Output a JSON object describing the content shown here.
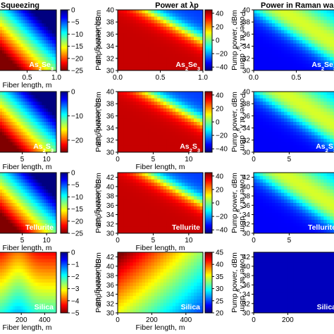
{
  "headers": [
    "Squeezing",
    "Power at λp",
    "Power in Raman wa"
  ],
  "chart_data": [
    {
      "type": "heatmap",
      "row": 0,
      "col": 0,
      "material": "As2Se3",
      "xlabel": "Fiber length, m",
      "xlim": [
        0,
        1
      ],
      "xticks": [
        "0.5",
        "1.0"
      ],
      "ylim": [
        0,
        1
      ],
      "yticks": [],
      "colorbar_label": "Squeezing, dB",
      "clim": [
        -25,
        0
      ],
      "cticks": [
        "0",
        "−5",
        "−10",
        "−15",
        "−20",
        "−25"
      ],
      "cmap": "jet_r",
      "pattern": "squeeze"
    },
    {
      "type": "heatmap",
      "row": 0,
      "col": 1,
      "material": "As2Se3",
      "xlabel": "",
      "xlim": [
        0,
        1
      ],
      "xticks": [
        "0.0",
        "0.5",
        "1.0"
      ],
      "ylabel": "Pump power, dBm",
      "ylim": [
        30,
        40
      ],
      "yticks": [
        "30",
        "32",
        "34",
        "36",
        "38",
        "40"
      ],
      "colorbar_label": "Power at λp, dBm",
      "clim": [
        -45,
        45
      ],
      "cticks": [
        "40",
        "20",
        "0",
        "−20",
        "−40"
      ],
      "cmap": "jet",
      "pattern": "pump"
    },
    {
      "type": "heatmap",
      "row": 0,
      "col": 2,
      "material": "As2Se3",
      "xlabel": "",
      "xlim": [
        0,
        1
      ],
      "xticks": [
        "0.0",
        "0.5"
      ],
      "ylabel": "Pump power, dBm",
      "ylim": [
        30,
        40
      ],
      "yticks": [
        "30",
        "32",
        "34",
        "36",
        "38",
        "40"
      ],
      "cmap": "jet",
      "pattern": "raman"
    },
    {
      "type": "heatmap",
      "row": 1,
      "col": 0,
      "material": "As2S3",
      "xlabel": "Fiber length, m",
      "xlim": [
        0,
        12
      ],
      "xticks": [
        "5",
        "10"
      ],
      "ylim": [
        0,
        1
      ],
      "yticks": [],
      "colorbar_label": "Squeezing, dB",
      "clim": [
        -25,
        0
      ],
      "cticks": [
        "0",
        "−10",
        "−20"
      ],
      "cmap": "jet_r",
      "pattern": "squeeze"
    },
    {
      "type": "heatmap",
      "row": 1,
      "col": 1,
      "material": "As2S3",
      "xlabel": "Fiber length, m",
      "xlim": [
        0,
        12
      ],
      "xticks": [
        "0",
        "5",
        "10"
      ],
      "ylabel": "Pump power, dBm",
      "ylim": [
        30,
        40
      ],
      "yticks": [
        "30",
        "32",
        "34",
        "36",
        "38",
        "40"
      ],
      "colorbar_label": "Power at λp, dBm",
      "clim": [
        -45,
        45
      ],
      "cticks": [
        "40",
        "20",
        "0",
        "−20",
        "−40"
      ],
      "cmap": "jet",
      "pattern": "pump"
    },
    {
      "type": "heatmap",
      "row": 1,
      "col": 2,
      "material": "As2S3",
      "xlabel": "",
      "xlim": [
        0,
        12
      ],
      "xticks": [
        "0",
        "5"
      ],
      "ylabel": "Pump power, dBm",
      "ylim": [
        30,
        40
      ],
      "yticks": [
        "30",
        "32",
        "34",
        "36",
        "38",
        "40"
      ],
      "cmap": "jet",
      "pattern": "raman"
    },
    {
      "type": "heatmap",
      "row": 2,
      "col": 0,
      "material": "Tellurite",
      "xlabel": "Fiber length, m",
      "xlim": [
        0,
        12
      ],
      "xticks": [
        "5",
        "10"
      ],
      "ylim": [
        0,
        1
      ],
      "yticks": [],
      "colorbar_label": "Squeezing, dB",
      "clim": [
        -25,
        0
      ],
      "cticks": [
        "0",
        "−5",
        "−10",
        "−15",
        "−20",
        "−25"
      ],
      "cmap": "jet_r",
      "pattern": "squeeze"
    },
    {
      "type": "heatmap",
      "row": 2,
      "col": 1,
      "material": "Tellurite",
      "xlabel": "Fiber length, m",
      "xlim": [
        0,
        12
      ],
      "xticks": [
        "0",
        "5",
        "10"
      ],
      "ylabel": "Pump power, dBm",
      "ylim": [
        30,
        43
      ],
      "yticks": [
        "30",
        "32",
        "34",
        "36",
        "38",
        "40",
        "42"
      ],
      "colorbar_label": "Power at λp, dBm",
      "clim": [
        -45,
        45
      ],
      "cticks": [
        "40",
        "20",
        "0",
        "−20",
        "−40"
      ],
      "cmap": "jet",
      "pattern": "pump"
    },
    {
      "type": "heatmap",
      "row": 2,
      "col": 2,
      "material": "Tellurite",
      "xlabel": "",
      "xlim": [
        0,
        12
      ],
      "xticks": [
        "0",
        "5"
      ],
      "ylabel": "Pump power, dBm",
      "ylim": [
        30,
        43
      ],
      "yticks": [
        "30",
        "32",
        "34",
        "36",
        "38",
        "40",
        "42"
      ],
      "cmap": "jet",
      "pattern": "raman"
    },
    {
      "type": "heatmap",
      "row": 3,
      "col": 0,
      "material": "Silica",
      "xlabel": "Fiber length, m",
      "xlim": [
        0,
        500
      ],
      "xticks": [
        "200",
        "400"
      ],
      "ylim": [
        0,
        1
      ],
      "yticks": [],
      "colorbar_label": "Squeezing, dB",
      "clim": [
        -5,
        0
      ],
      "cticks": [
        "0",
        "−1",
        "−2",
        "−3",
        "−4",
        "−5"
      ],
      "cmap": "jet_r",
      "pattern": "silica_sq"
    },
    {
      "type": "heatmap",
      "row": 3,
      "col": 1,
      "material": "Silica",
      "xlabel": "Fiber length, m",
      "xlim": [
        0,
        500
      ],
      "xticks": [
        "0",
        "200",
        "400"
      ],
      "ylabel": "Pump power, dBm",
      "ylim": [
        30,
        43
      ],
      "yticks": [
        "30",
        "32",
        "34",
        "36",
        "38",
        "40",
        "42"
      ],
      "colorbar_label": "Power at λp, dBm",
      "clim": [
        20,
        45
      ],
      "cticks": [
        "45",
        "40",
        "35",
        "30",
        "25",
        "20"
      ],
      "cmap": "jet",
      "pattern": "silica_pump"
    },
    {
      "type": "heatmap",
      "row": 3,
      "col": 2,
      "material": "Silica",
      "xlabel": "",
      "xlim": [
        0,
        500
      ],
      "xticks": [
        "0",
        "200"
      ],
      "ylabel": "Pump power, dBm",
      "ylim": [
        30,
        43
      ],
      "yticks": [
        "30",
        "32",
        "34",
        "36",
        "38",
        "40",
        "42"
      ],
      "cmap": "jet",
      "pattern": "silica_raman"
    }
  ]
}
